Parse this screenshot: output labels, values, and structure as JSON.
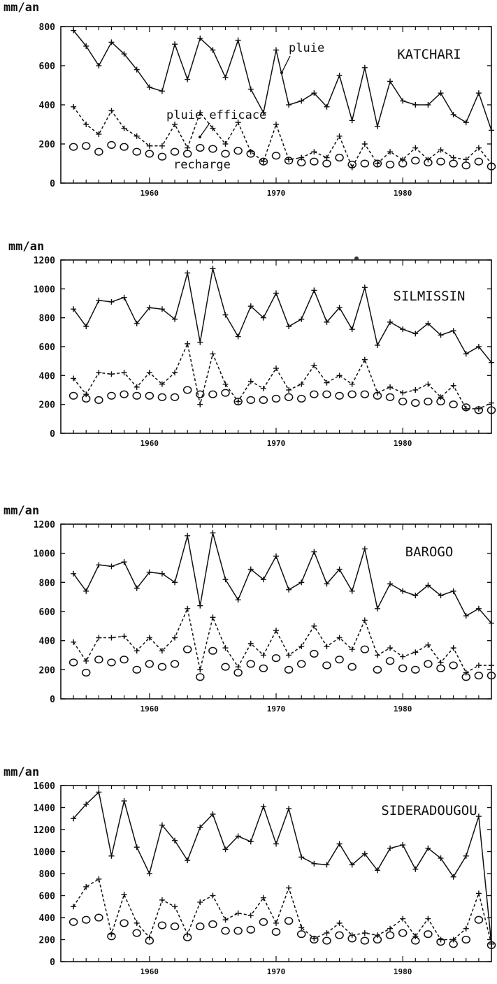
{
  "chart_data": [
    {
      "type": "line",
      "title": "KATCHARI",
      "ylabel": "mm/an",
      "xlabel": "",
      "xlim": [
        1953,
        1987
      ],
      "ylim": [
        0,
        800
      ],
      "yticks": [
        0,
        200,
        400,
        600,
        800
      ],
      "ytick_labels": [
        "0",
        "200",
        "400",
        "600",
        "800"
      ],
      "xticks": [
        1960,
        1970,
        1980
      ],
      "xtick_labels": [
        "1960",
        "1970",
        "1980"
      ],
      "annotations": [
        "pluie",
        "pluie efficace",
        "recharge"
      ],
      "x": [
        1954,
        1955,
        1956,
        1957,
        1958,
        1959,
        1960,
        1961,
        1962,
        1963,
        1964,
        1965,
        1966,
        1967,
        1968,
        1969,
        1970,
        1971,
        1972,
        1973,
        1974,
        1975,
        1976,
        1977,
        1978,
        1979,
        1980,
        1981,
        1982,
        1983,
        1984,
        1985,
        1986,
        1987
      ],
      "series": [
        {
          "name": "pluie",
          "style": "solid-plus",
          "values": [
            780,
            700,
            600,
            720,
            660,
            580,
            490,
            470,
            710,
            530,
            740,
            680,
            540,
            730,
            480,
            360,
            680,
            400,
            420,
            460,
            390,
            550,
            320,
            590,
            290,
            520,
            420,
            400,
            400,
            460,
            350,
            310,
            460,
            270
          ]
        },
        {
          "name": "pluie efficace",
          "style": "dashed-plus",
          "values": [
            390,
            300,
            250,
            370,
            280,
            240,
            190,
            190,
            300,
            180,
            360,
            280,
            200,
            310,
            160,
            110,
            300,
            120,
            130,
            160,
            130,
            240,
            80,
            200,
            100,
            160,
            120,
            180,
            120,
            170,
            130,
            120,
            180,
            100
          ]
        },
        {
          "name": "recharge",
          "style": "circle",
          "values": [
            185,
            190,
            160,
            195,
            185,
            160,
            150,
            135,
            160,
            150,
            180,
            175,
            150,
            165,
            150,
            110,
            140,
            115,
            105,
            110,
            100,
            130,
            95,
            100,
            100,
            95,
            100,
            115,
            105,
            110,
            100,
            90,
            110,
            85
          ]
        }
      ]
    },
    {
      "type": "line",
      "title": "SILMISSIN",
      "ylabel": "mm/an",
      "xlabel": "",
      "xlim": [
        1953,
        1987
      ],
      "ylim": [
        0,
        1200
      ],
      "yticks": [
        0,
        200,
        400,
        600,
        800,
        1000,
        1200
      ],
      "ytick_labels": [
        "0",
        "200",
        "400",
        "600",
        "800",
        "1000",
        "1200"
      ],
      "xticks": [
        1960,
        1970,
        1980
      ],
      "xtick_labels": [
        "1960",
        "1970",
        "1980"
      ],
      "x": [
        1954,
        1955,
        1956,
        1957,
        1958,
        1959,
        1960,
        1961,
        1962,
        1963,
        1964,
        1965,
        1966,
        1967,
        1968,
        1969,
        1970,
        1971,
        1972,
        1973,
        1974,
        1975,
        1976,
        1977,
        1978,
        1979,
        1980,
        1981,
        1982,
        1983,
        1984,
        1985,
        1986,
        1987
      ],
      "series": [
        {
          "name": "",
          "style": "solid-plus",
          "values": [
            860,
            740,
            920,
            910,
            940,
            760,
            870,
            860,
            790,
            1110,
            630,
            1140,
            820,
            670,
            880,
            800,
            970,
            740,
            790,
            990,
            770,
            870,
            720,
            1010,
            610,
            770,
            720,
            690,
            760,
            680,
            710,
            550,
            600,
            490
          ]
        },
        {
          "name": "",
          "style": "dashed-plus",
          "values": [
            380,
            270,
            420,
            410,
            420,
            320,
            420,
            340,
            420,
            620,
            200,
            550,
            340,
            220,
            360,
            310,
            450,
            300,
            340,
            470,
            350,
            400,
            340,
            510,
            280,
            320,
            280,
            300,
            340,
            250,
            330,
            170,
            170,
            210
          ]
        },
        {
          "name": "",
          "style": "circle",
          "values": [
            260,
            240,
            230,
            260,
            270,
            260,
            260,
            250,
            250,
            300,
            270,
            270,
            280,
            220,
            230,
            230,
            240,
            250,
            240,
            270,
            270,
            260,
            270,
            270,
            260,
            250,
            220,
            210,
            220,
            220,
            200,
            180,
            160,
            160
          ]
        }
      ]
    },
    {
      "type": "line",
      "title": "BAROGO",
      "ylabel": "mm/an",
      "xlabel": "",
      "xlim": [
        1953,
        1987
      ],
      "ylim": [
        0,
        1200
      ],
      "yticks": [
        0,
        200,
        400,
        600,
        800,
        1000,
        1200
      ],
      "ytick_labels": [
        "0",
        "200",
        "400",
        "600",
        "800",
        "1000",
        "1200"
      ],
      "xticks": [
        1960,
        1970,
        1980
      ],
      "xtick_labels": [
        "1960",
        "1970",
        "1980"
      ],
      "x": [
        1954,
        1955,
        1956,
        1957,
        1958,
        1959,
        1960,
        1961,
        1962,
        1963,
        1964,
        1965,
        1966,
        1967,
        1968,
        1969,
        1970,
        1971,
        1972,
        1973,
        1974,
        1975,
        1976,
        1977,
        1978,
        1979,
        1980,
        1981,
        1982,
        1983,
        1984,
        1985,
        1986,
        1987
      ],
      "series": [
        {
          "name": "",
          "style": "solid-plus",
          "values": [
            860,
            740,
            920,
            910,
            940,
            760,
            870,
            860,
            800,
            1120,
            640,
            1140,
            820,
            680,
            890,
            820,
            980,
            750,
            800,
            1010,
            790,
            890,
            740,
            1030,
            620,
            790,
            740,
            710,
            780,
            710,
            740,
            570,
            620,
            520
          ]
        },
        {
          "name": "",
          "style": "dashed-plus",
          "values": [
            390,
            260,
            420,
            420,
            430,
            330,
            420,
            330,
            420,
            620,
            200,
            560,
            350,
            220,
            380,
            300,
            470,
            300,
            360,
            500,
            360,
            420,
            340,
            540,
            300,
            350,
            290,
            320,
            370,
            250,
            350,
            180,
            230,
            230
          ]
        },
        {
          "name": "",
          "style": "circle",
          "values": [
            250,
            180,
            270,
            250,
            270,
            200,
            240,
            220,
            240,
            340,
            150,
            330,
            220,
            180,
            240,
            210,
            280,
            200,
            240,
            310,
            230,
            270,
            220,
            340,
            200,
            260,
            210,
            200,
            240,
            210,
            230,
            150,
            160,
            160
          ]
        }
      ]
    },
    {
      "type": "line",
      "title": "SIDERADOUGOU",
      "ylabel": "mm/an",
      "xlabel": "",
      "xlim": [
        1953,
        1987
      ],
      "ylim": [
        0,
        1600
      ],
      "yticks": [
        0,
        200,
        400,
        600,
        800,
        1000,
        1200,
        1400,
        1600
      ],
      "ytick_labels": [
        "0",
        "200",
        "400",
        "600",
        "800",
        "1000",
        "1200",
        "1400",
        "1600"
      ],
      "xticks": [
        1960,
        1970,
        1980
      ],
      "xtick_labels": [
        "1960",
        "1970",
        "1980"
      ],
      "x": [
        1954,
        1955,
        1956,
        1957,
        1958,
        1959,
        1960,
        1961,
        1962,
        1963,
        1964,
        1965,
        1966,
        1967,
        1968,
        1969,
        1970,
        1971,
        1972,
        1973,
        1974,
        1975,
        1976,
        1977,
        1978,
        1979,
        1980,
        1981,
        1982,
        1983,
        1984,
        1985,
        1986,
        1987
      ],
      "series": [
        {
          "name": "",
          "style": "solid-plus",
          "values": [
            1300,
            1430,
            1540,
            960,
            1460,
            1040,
            800,
            1240,
            1100,
            920,
            1220,
            1340,
            1020,
            1140,
            1090,
            1410,
            1070,
            1390,
            950,
            890,
            880,
            1070,
            880,
            980,
            830,
            1030,
            1060,
            840,
            1030,
            940,
            770,
            960,
            1320,
            160
          ]
        },
        {
          "name": "",
          "style": "dashed-plus",
          "values": [
            500,
            680,
            750,
            250,
            610,
            350,
            220,
            560,
            500,
            250,
            540,
            600,
            380,
            440,
            420,
            580,
            350,
            670,
            310,
            210,
            260,
            350,
            240,
            260,
            240,
            300,
            390,
            230,
            390,
            200,
            200,
            300,
            620,
            160
          ]
        },
        {
          "name": "",
          "style": "circle",
          "values": [
            360,
            380,
            400,
            230,
            350,
            260,
            190,
            330,
            320,
            220,
            320,
            340,
            280,
            280,
            290,
            360,
            270,
            370,
            250,
            200,
            190,
            240,
            210,
            190,
            200,
            240,
            260,
            190,
            250,
            180,
            160,
            200,
            380,
            150
          ]
        }
      ]
    }
  ]
}
